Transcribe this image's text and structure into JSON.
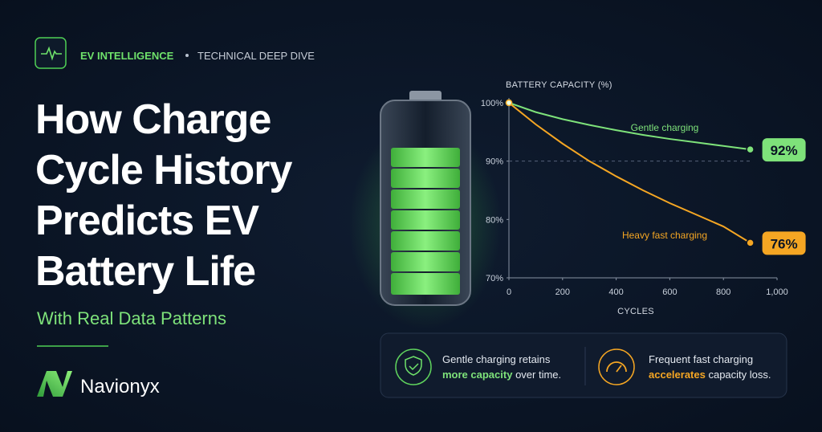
{
  "header": {
    "kicker": "EV INTELLIGENCE",
    "tag": "TECHNICAL DEEP DIVE"
  },
  "title_lines": [
    "How Charge",
    "Cycle History",
    "Predicts EV",
    "Battery Life"
  ],
  "subtitle": "With Real Data Patterns",
  "brand": "Navionyx",
  "cards": [
    {
      "parts": [
        "Gentle charging retains",
        "more capacity",
        "over time."
      ]
    },
    {
      "parts": [
        "Frequent fast charging",
        "accelerates",
        "capacity loss."
      ]
    }
  ],
  "chart_data": {
    "type": "line",
    "y_label": "BATTERY CAPACITY (%)",
    "x_label": "CYCLES",
    "x": [
      0,
      100,
      200,
      300,
      400,
      500,
      600,
      700,
      800,
      900
    ],
    "series": [
      {
        "name": "Gentle charging",
        "color": "#7ee27a",
        "values": [
          100,
          98.4,
          97.2,
          96.2,
          95.3,
          94.5,
          93.8,
          93.2,
          92.6,
          92
        ],
        "value_labels": [
          null,
          null,
          null,
          null,
          null,
          null,
          null,
          null,
          null,
          "92%"
        ]
      },
      {
        "name": "Heavy fast charging",
        "color": "#f5a623",
        "values": [
          100,
          96.3,
          93,
          90,
          87.4,
          85,
          82.8,
          80.8,
          78.8,
          76
        ],
        "value_labels": [
          null,
          null,
          null,
          null,
          null,
          null,
          null,
          null,
          null,
          "76%"
        ]
      }
    ],
    "xlim": [
      0,
      1000
    ],
    "xticks": [
      0,
      200,
      400,
      600,
      800,
      {
        "value": 1000,
        "label": "1,000"
      }
    ],
    "ylim": [
      70,
      100
    ],
    "yticks": [
      {
        "value": 70,
        "label": "70%"
      },
      {
        "value": 80,
        "label": "80%"
      },
      {
        "value": 90,
        "label": "90%"
      },
      {
        "value": 100,
        "label": "100%"
      }
    ],
    "reference_line": 90
  }
}
